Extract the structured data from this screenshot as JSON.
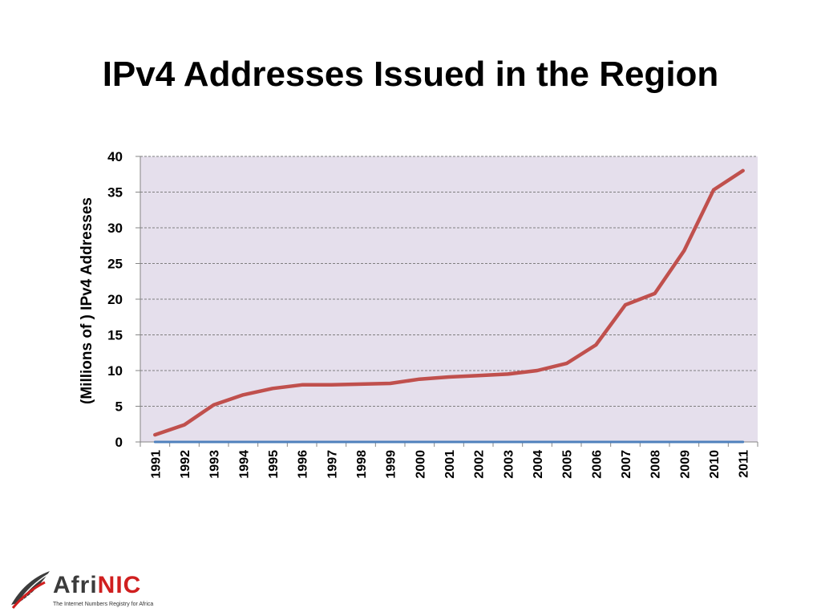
{
  "page": {
    "title": "IPv4 Addresses Issued in the Region"
  },
  "chart_data": {
    "type": "line",
    "title": "",
    "xlabel": "",
    "ylabel": "(Millions of ) IPv4 Addresses",
    "categories": [
      "1991",
      "1992",
      "1993",
      "1994",
      "1995",
      "1996",
      "1997",
      "1998",
      "1999",
      "2000",
      "2001",
      "2002",
      "2003",
      "2004",
      "2005",
      "2006",
      "2007",
      "2008",
      "2009",
      "2010",
      "2011"
    ],
    "y_ticks": [
      "0",
      "5",
      "10",
      "15",
      "20",
      "25",
      "30",
      "35",
      "40"
    ],
    "ylim": [
      0,
      40
    ],
    "grid": true,
    "legend": "none",
    "plot_background": "#e5dfec",
    "series": [
      {
        "color": "#c0504d",
        "values": [
          1.0,
          2.4,
          5.2,
          6.6,
          7.5,
          8.0,
          8.0,
          8.1,
          8.2,
          8.8,
          9.1,
          9.3,
          9.5,
          10.0,
          11.0,
          13.6,
          19.2,
          20.8,
          26.8,
          35.3,
          38.0
        ]
      },
      {
        "color": "#4f81bd",
        "values": [
          0,
          0,
          0,
          0,
          0,
          0,
          0,
          0,
          0,
          0,
          0,
          0,
          0,
          0,
          0,
          0,
          0,
          0,
          0,
          0,
          0
        ]
      }
    ]
  },
  "logo": {
    "word_part1": "Afri",
    "word_part2": "NIC",
    "tagline": "The Internet Numbers Registry for Africa",
    "mark_icon": "afrinic-feather-icon"
  }
}
